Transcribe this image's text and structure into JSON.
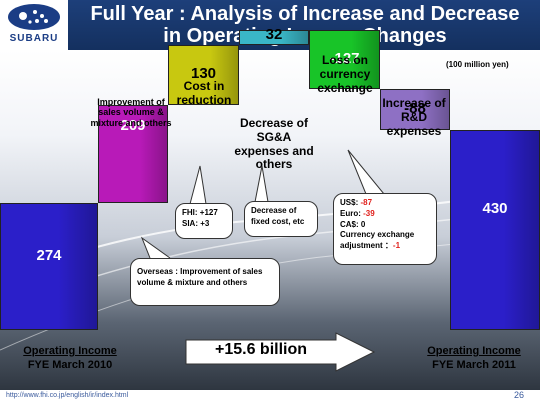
{
  "header": {
    "logo_text": "SUBARU",
    "title_line1": "Full Year : Analysis of Increase and Decrease",
    "title_line2": "in Operating Income Changes"
  },
  "unit_note": "(100 million yen)",
  "chart_data": {
    "type": "waterfall",
    "bars": [
      {
        "value": 274,
        "label": "274"
      },
      {
        "value": 209,
        "label": "209"
      },
      {
        "value": 130,
        "label": "130"
      },
      {
        "value": 32,
        "label": "32"
      },
      {
        "value": -127,
        "label": "-127"
      },
      {
        "value": -88,
        "label": "-88"
      },
      {
        "value": 430,
        "label": "430"
      }
    ],
    "categories": [
      "Operating Income FYE March 2010",
      "Improvement of sales volume & mixture and others",
      "Cost in reduction",
      "Decrease of SG&A expenses and others",
      "Loss on currency exchange",
      "Increase of R&D expenses",
      "Operating Income FYE March 2011"
    ],
    "colors": [
      "#2b1fc9",
      "#b81ab8",
      "#c8c810",
      "#3ab6c6",
      "#18c428",
      "#8e70c4",
      "#2b1fc9"
    ]
  },
  "labels": {
    "improvement": "Improvement of sales volume & mixture and others",
    "cost": "Cost in reduction",
    "sga": "Decrease of SG&A expenses and others",
    "currency": "Loss on currency exchange",
    "rd": "Increase of R&D expenses"
  },
  "callouts": {
    "overseas": "Overseas : Improvement of sales volume & mixture and others",
    "fhi": "FHI: +127",
    "sia": "SIA: +3",
    "fixed": "Decrease of fixed cost, etc",
    "usd_label": "US$:",
    "usd_value": "-87",
    "euro_label": "Euro:",
    "euro_value": "-39",
    "cad": "CA$: 0",
    "adj_label": "Currency exchange adjustment ：",
    "adj_value": "-1"
  },
  "bottom": {
    "left_line1": "Operating Income",
    "left_line2": "FYE March 2010",
    "right_line1": "Operating Income",
    "right_line2": "FYE March 2011",
    "change": "+15.6 billion"
  },
  "footer": {
    "url": "http://www.fhi.co.jp/english/ir/index.html",
    "page": "26"
  }
}
